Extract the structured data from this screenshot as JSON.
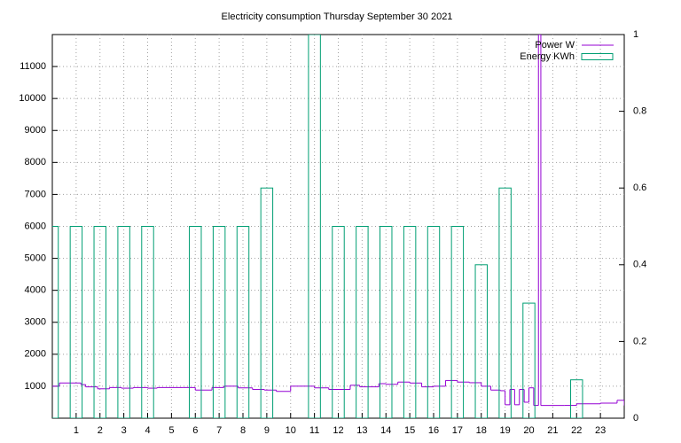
{
  "chart_data": {
    "type": "line",
    "title": "Electricity consumption Thursday September 30 2021",
    "xlim": [
      0,
      24
    ],
    "xticks": [
      1,
      2,
      3,
      4,
      5,
      6,
      7,
      8,
      9,
      10,
      11,
      12,
      13,
      14,
      15,
      16,
      17,
      18,
      19,
      20,
      21,
      22,
      23
    ],
    "ylim": [
      0,
      12000
    ],
    "yticks": [
      1000,
      2000,
      3000,
      4000,
      5000,
      6000,
      7000,
      8000,
      9000,
      10000,
      11000
    ],
    "y2lim": [
      0,
      1
    ],
    "y2ticks": [
      0,
      0.2,
      0.4,
      0.6,
      0.8,
      1
    ],
    "grid": true,
    "legend": "top-right",
    "series": [
      {
        "name": "Power W",
        "color": "#9400d3",
        "type": "line",
        "step": true,
        "x": [
          0,
          0.3,
          1.2,
          1.4,
          1.9,
          2.4,
          2.9,
          3.4,
          4.0,
          4.4,
          5.5,
          6.0,
          6.7,
          7.2,
          7.8,
          8.4,
          8.9,
          9.4,
          10.0,
          11.0,
          11.6,
          12.5,
          12.9,
          13.7,
          14.0,
          14.5,
          15.0,
          15.5,
          16.0,
          16.5,
          17.0,
          17.5,
          18.0,
          18.4,
          18.8,
          19.0,
          19.2,
          19.4,
          19.6,
          19.8,
          20.0,
          20.2,
          20.4,
          20.5,
          21.5,
          22.0,
          23.0,
          23.7,
          24.0
        ],
        "values": [
          1000,
          1100,
          1050,
          980,
          920,
          960,
          940,
          960,
          940,
          960,
          960,
          880,
          960,
          1000,
          950,
          900,
          880,
          840,
          1000,
          950,
          900,
          1030,
          980,
          1080,
          1060,
          1130,
          1100,
          980,
          1000,
          1180,
          1130,
          1110,
          1000,
          880,
          860,
          420,
          900,
          420,
          900,
          500,
          950,
          400,
          12000,
          400,
          400,
          450,
          470,
          560,
          400
        ]
      },
      {
        "name": "Energy KWh",
        "color": "#009e73",
        "type": "bar",
        "axis": "y2",
        "x": [
          0,
          1,
          2,
          3,
          4,
          5,
          6,
          7,
          8,
          9,
          10,
          11,
          12,
          13,
          14,
          15,
          16,
          17,
          18,
          19,
          20,
          21,
          22,
          23
        ],
        "values": [
          0.5,
          0.5,
          0.5,
          0.5,
          0.5,
          0,
          0.5,
          0.5,
          0.5,
          0.6,
          0,
          1,
          0.5,
          0.5,
          0.5,
          0.5,
          0.5,
          0.5,
          0.4,
          0.6,
          0.3,
          0,
          0.1,
          0
        ]
      }
    ]
  }
}
